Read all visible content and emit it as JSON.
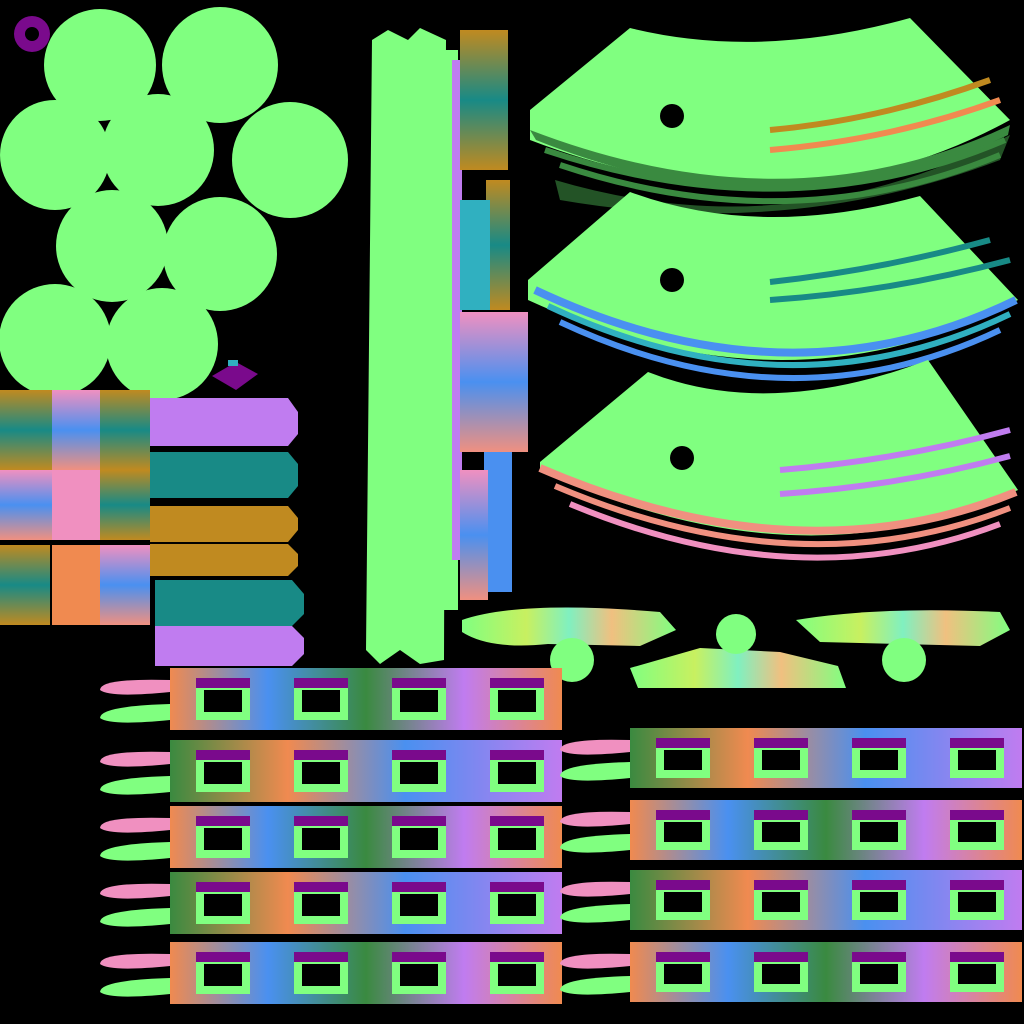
{
  "texture": {
    "description_type": "normal-map UV layout",
    "colors": {
      "background": "#000000",
      "flat_green": "#80ff80",
      "purple": "#7a0a8c",
      "violet": "#c07cf0",
      "teal": "#188a86",
      "ochre": "#c08a20",
      "orange": "#f08a50",
      "pink": "#f090c0",
      "blue": "#4a90f0",
      "cyan": "#30b0c0",
      "salmon": "#f09080",
      "dark_green": "#3a8a40"
    }
  }
}
